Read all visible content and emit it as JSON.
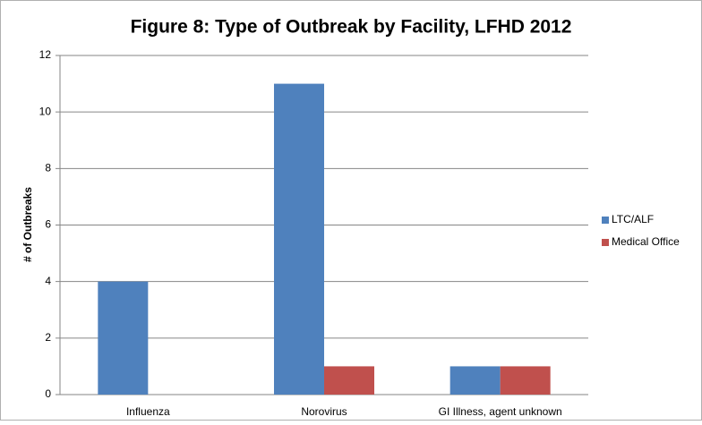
{
  "chart_data": {
    "type": "bar",
    "title": "Figure 8: Type of Outbreak by Facility, LFHD 2012",
    "y_label": "# of Outbreaks",
    "categories": [
      "Influenza",
      "Norovirus",
      "GI Illness, agent unknown"
    ],
    "series": [
      {
        "name": "LTC/ALF",
        "color": "#4f81bd",
        "values": [
          4,
          11,
          1
        ]
      },
      {
        "name": "Medical Office",
        "color": "#c0504d",
        "values": [
          0,
          1,
          1
        ]
      }
    ],
    "ylim": [
      0,
      12
    ],
    "yticks": [
      0,
      2,
      4,
      6,
      8,
      10,
      12
    ],
    "grid": true,
    "legend": "right"
  }
}
